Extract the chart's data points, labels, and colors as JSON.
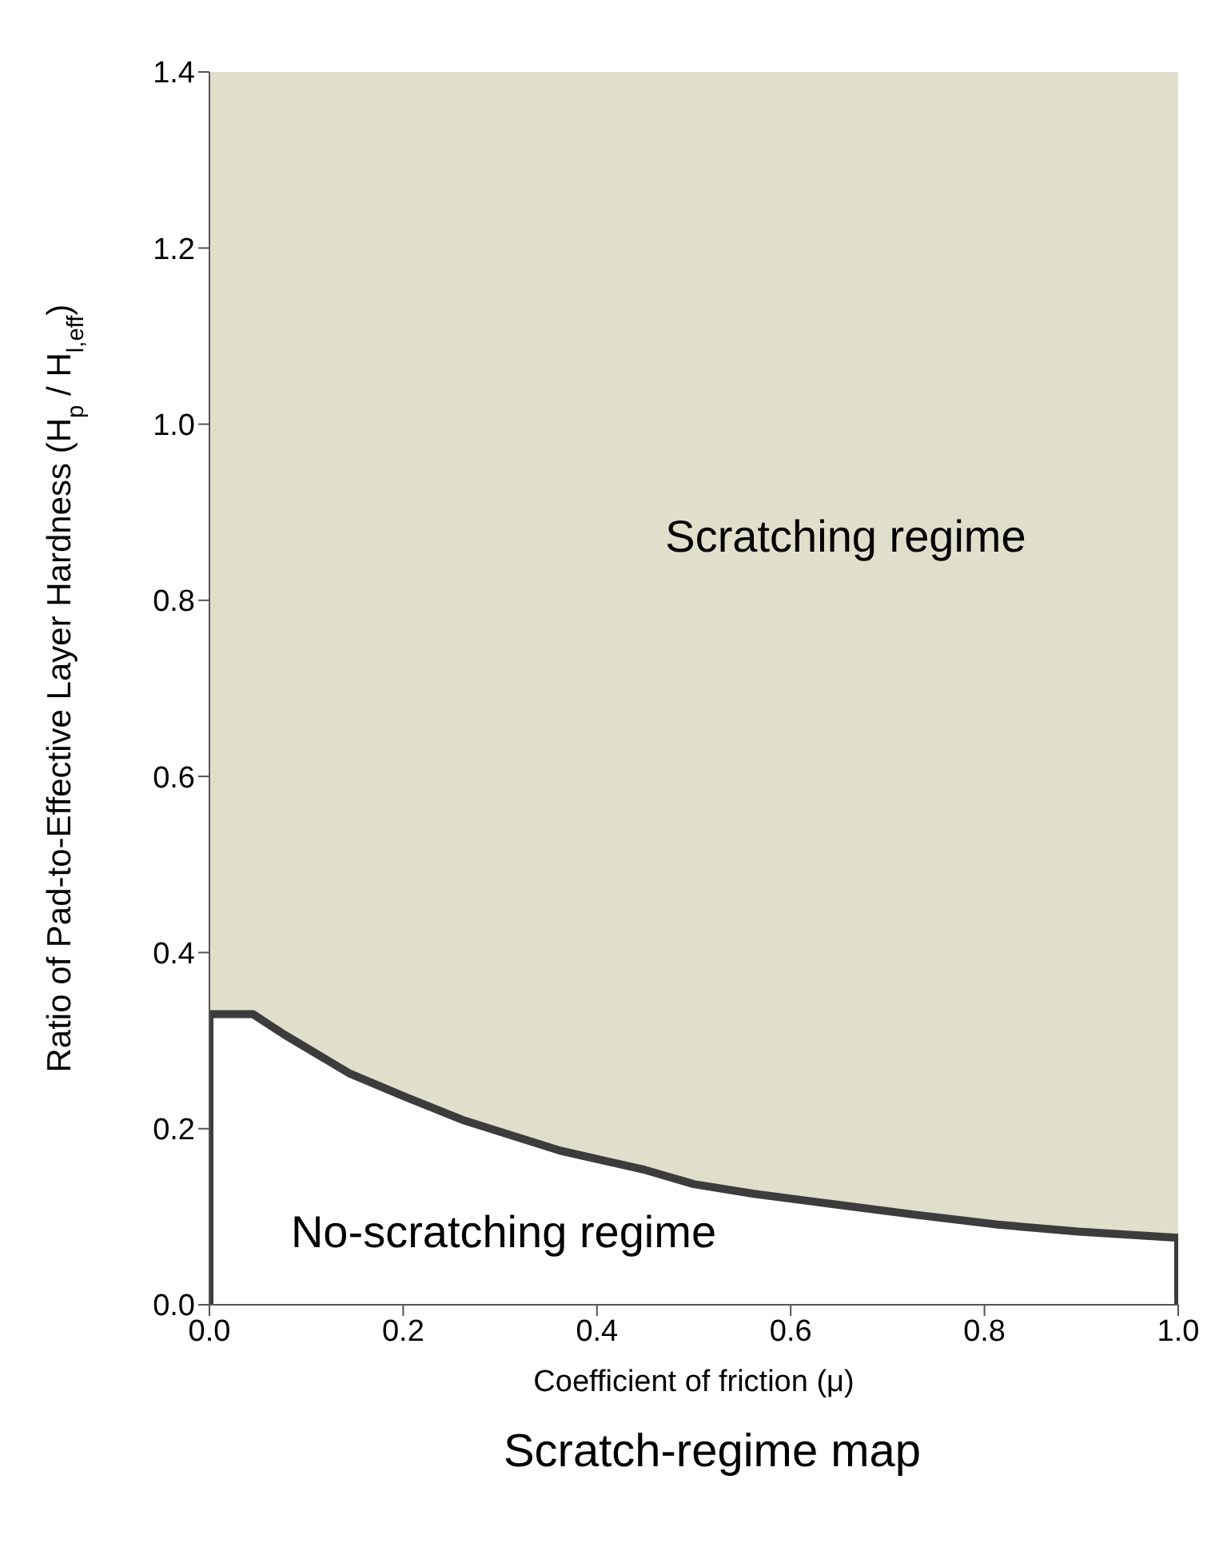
{
  "chart_data": {
    "type": "area",
    "title": "Scratch-regime map",
    "xlabel": "Coefficient of friction (μ)",
    "ylabel": "Ratio of Pad-to-Effective Layer Hardness (H$_{p}$ / H$_{l,eff}$)",
    "x": [
      0,
      0,
      0.045,
      0.077,
      0.144,
      0.2,
      0.261,
      0.362,
      0.45,
      0.5,
      0.562,
      0.646,
      0.73,
      0.814,
      0.897,
      1.0,
      1.0
    ],
    "series": [
      {
        "color": "#3c3c3c",
        "values": [
          0,
          0.33,
          0.33,
          0.307,
          0.263,
          0.237,
          0.21,
          0.175,
          0.153,
          0.137,
          0.126,
          0.114,
          0.102,
          0.091,
          0.083,
          0.076,
          0
        ]
      }
    ],
    "xlim": [
      0,
      1.0
    ],
    "xticks": [
      {
        "value": 0,
        "label": "0.0"
      },
      0.2,
      0.4,
      0.6,
      0.8,
      {
        "value": 1,
        "label": "1.0"
      }
    ],
    "ylim": [
      0,
      1.4
    ],
    "yticks": [
      {
        "value": 0,
        "label": "0.0"
      },
      0.2,
      0.4,
      0.6,
      0.8,
      {
        "value": 1,
        "label": "1.0"
      },
      1.2,
      1.4
    ],
    "bands": [
      {
        "axis": "y",
        "from": 0,
        "to": 1.4,
        "color": "#e0dfcc"
      }
    ],
    "annotations": [
      "Scratching regime",
      "No-scratching regime"
    ],
    "grid": false
  }
}
